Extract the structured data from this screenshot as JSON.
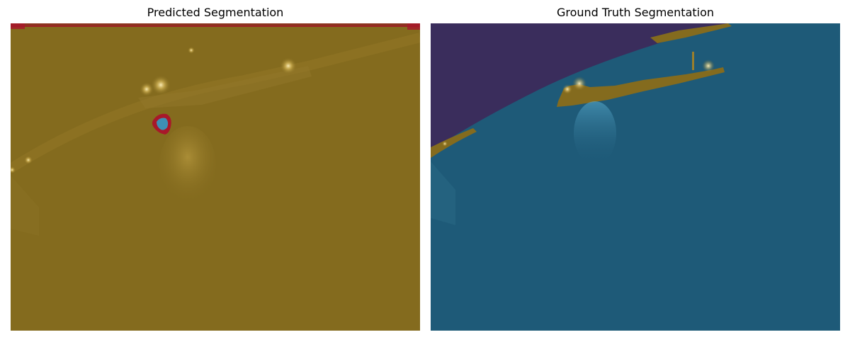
{
  "figure": {
    "left_panel": {
      "title": "Predicted Segmentation"
    },
    "right_panel": {
      "title": "Ground Truth Segmentation"
    }
  },
  "colors": {
    "land_overlay": "#846b1e",
    "water_overlay": "#1e5a78",
    "sky_overlay": "#3a2d5c",
    "boundary_red": "#a8182a",
    "predicted_water_blob": "#3d8fb5",
    "lights": "#ffe9a8"
  }
}
